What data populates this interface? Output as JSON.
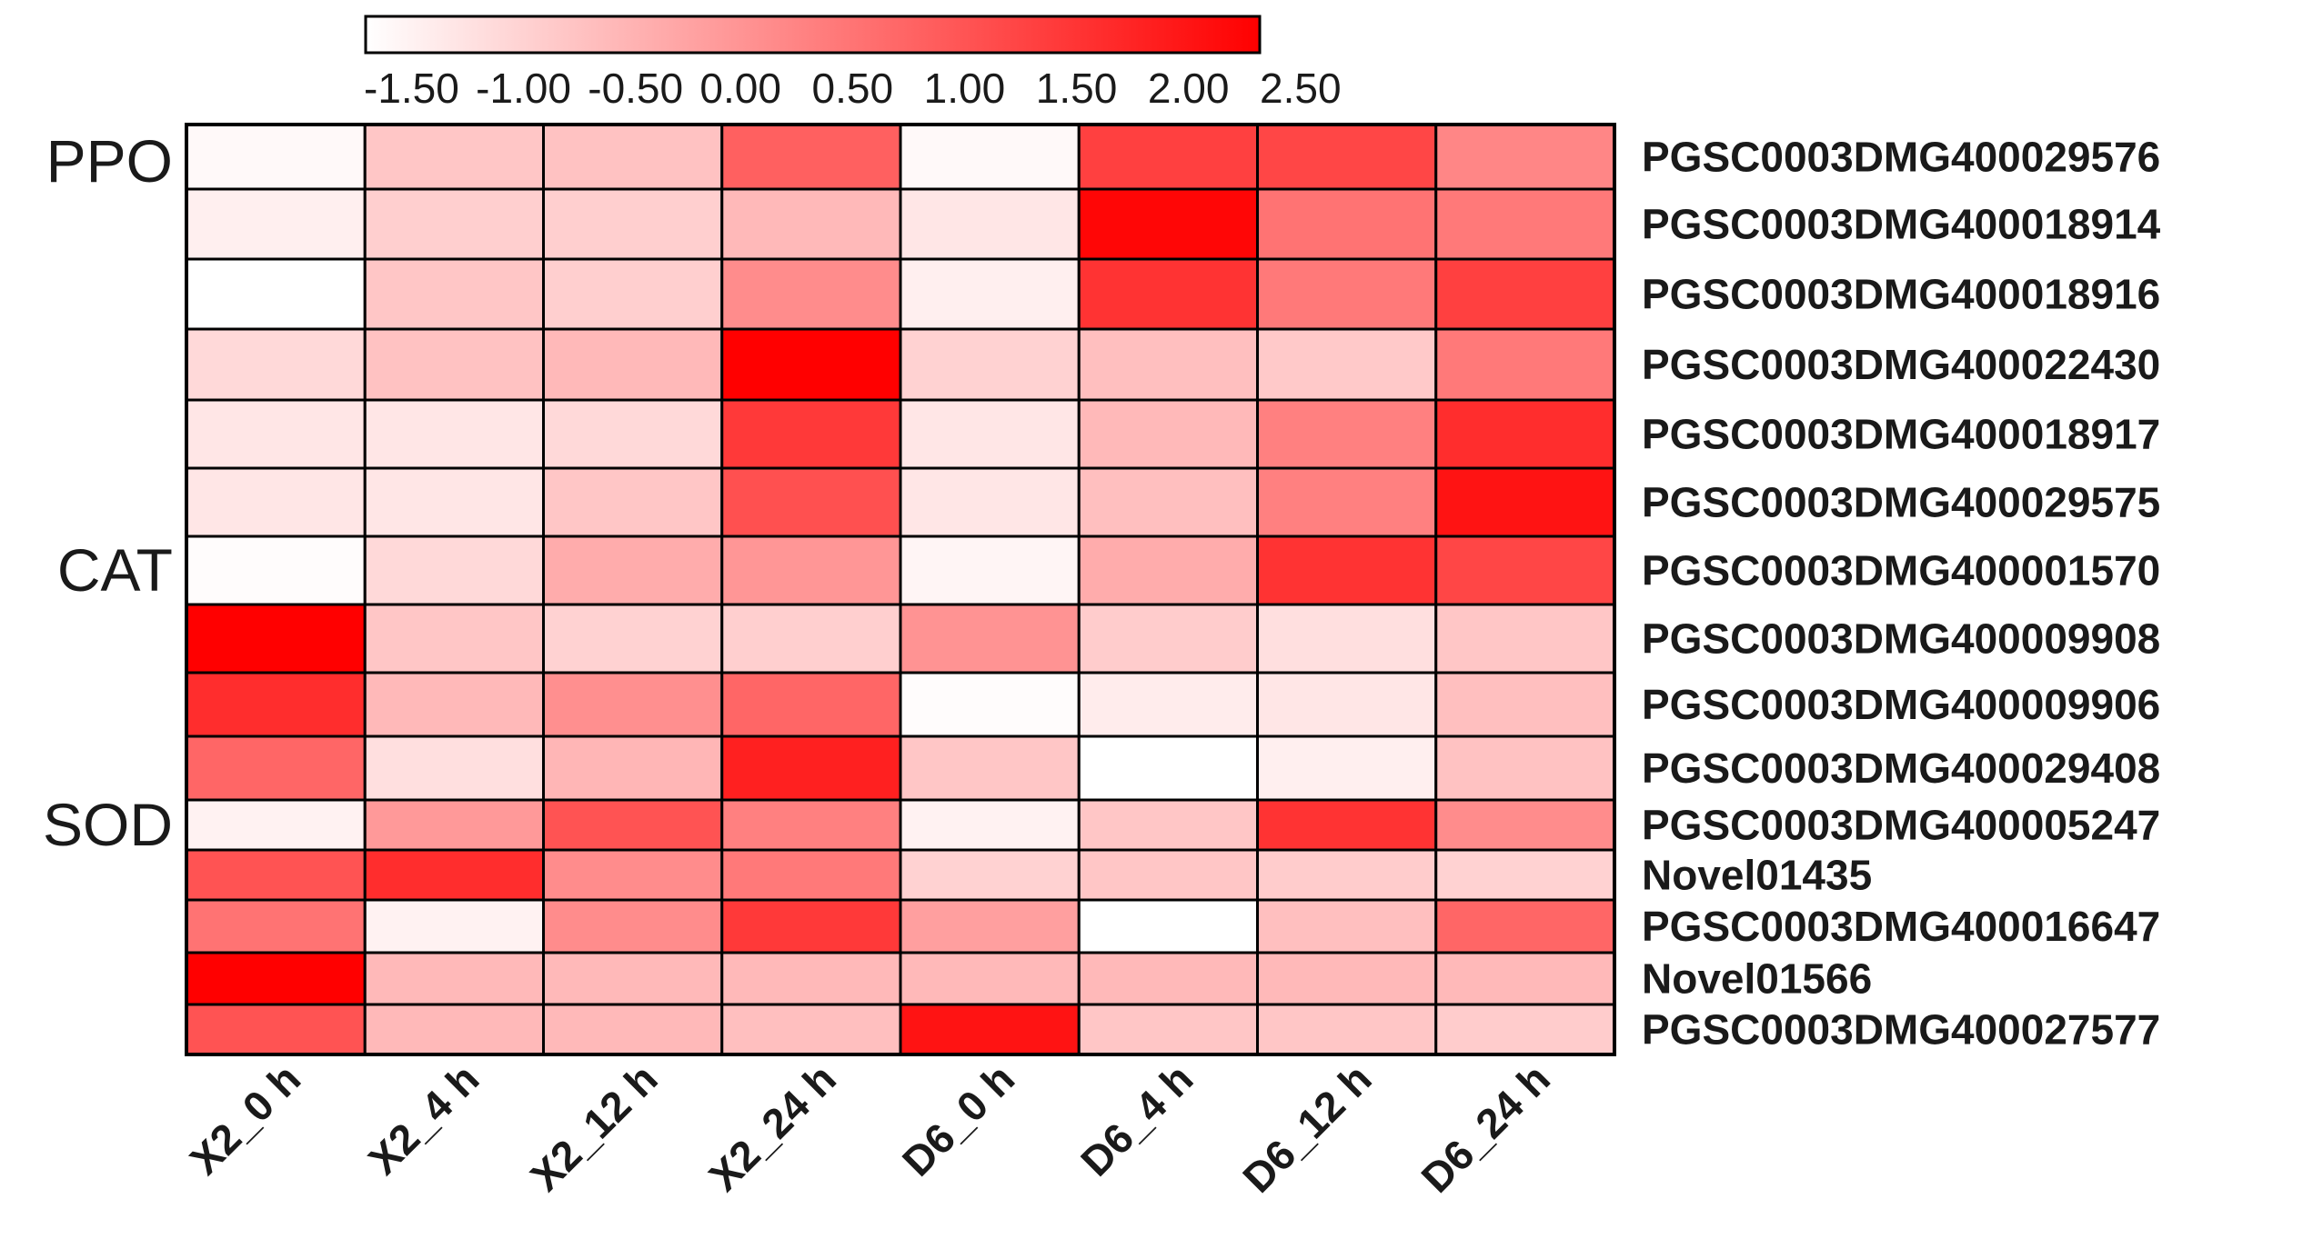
{
  "chart_data": {
    "type": "heatmap",
    "title": "",
    "xlabel": "",
    "ylabel": "",
    "columns": [
      "X2_0 h",
      "X2_4 h",
      "X2_12 h",
      "X2_24 h",
      "D6_0 h",
      "D6_4 h",
      "D6_12 h",
      "D6_24 h"
    ],
    "rows": [
      "PGSC0003DMG400029576",
      "PGSC0003DMG400018914",
      "PGSC0003DMG400018916",
      "PGSC0003DMG400022430",
      "PGSC0003DMG400018917",
      "PGSC0003DMG400029575",
      "PGSC0003DMG400001570",
      "PGSC0003DMG400009908",
      "PGSC0003DMG400009906",
      "PGSC0003DMG400029408",
      "PGSC0003DMG400005247",
      "Novel01435",
      "PGSC0003DMG400016647",
      "Novel01566",
      "PGSC0003DMG400027577"
    ],
    "values": [
      [
        -1.4,
        -0.6,
        -0.55,
        1.0,
        -1.4,
        1.5,
        1.4,
        0.4
      ],
      [
        -1.25,
        -0.75,
        -0.75,
        -0.4,
        -1.1,
        2.4,
        0.7,
        0.6
      ],
      [
        -1.5,
        -0.6,
        -0.75,
        0.3,
        -1.25,
        1.7,
        0.6,
        1.5
      ],
      [
        -0.9,
        -0.55,
        -0.4,
        2.5,
        -0.8,
        -0.5,
        -0.65,
        0.6
      ],
      [
        -1.1,
        -1.1,
        -0.9,
        1.6,
        -1.1,
        -0.4,
        0.5,
        1.8
      ],
      [
        -1.1,
        -1.1,
        -0.6,
        1.25,
        -1.1,
        -0.5,
        0.5,
        2.2
      ],
      [
        -1.45,
        -0.9,
        -0.2,
        0.15,
        -1.35,
        -0.2,
        1.7,
        1.4
      ],
      [
        2.5,
        -0.6,
        -0.8,
        -0.75,
        0.2,
        -0.7,
        -1.0,
        -0.6
      ],
      [
        1.8,
        -0.4,
        0.25,
        0.9,
        -1.45,
        -1.2,
        -1.1,
        -0.5
      ],
      [
        0.9,
        -1.0,
        -0.35,
        2.0,
        -0.6,
        -1.5,
        -1.25,
        -0.55
      ],
      [
        -1.3,
        0.1,
        1.2,
        0.5,
        -1.3,
        -0.6,
        1.7,
        0.3
      ],
      [
        1.2,
        1.8,
        0.3,
        0.6,
        -0.8,
        -0.6,
        -0.7,
        -0.8
      ],
      [
        0.7,
        -1.3,
        0.3,
        1.6,
        0.0,
        -1.5,
        -0.5,
        0.9
      ],
      [
        2.5,
        -0.4,
        -0.4,
        -0.4,
        -0.4,
        -0.4,
        -0.4,
        -0.4
      ],
      [
        1.2,
        -0.4,
        -0.4,
        -0.5,
        2.2,
        -0.6,
        -0.6,
        -0.7
      ]
    ],
    "colorbar": {
      "min": -1.5,
      "max": 2.5,
      "low_color": "#ffffff",
      "high_color": "#ff0000",
      "ticks": [
        "-1.50",
        "-1.00",
        "-0.50",
        "0.00",
        "0.50",
        "1.00",
        "1.50",
        "2.00",
        "2.50"
      ]
    },
    "groups": [
      {
        "label": "PPO",
        "row_index": 0
      },
      {
        "label": "CAT",
        "row_index": 6
      },
      {
        "label": "SOD",
        "row_index": 10
      }
    ],
    "legend": "top colorbar",
    "grid": true
  }
}
